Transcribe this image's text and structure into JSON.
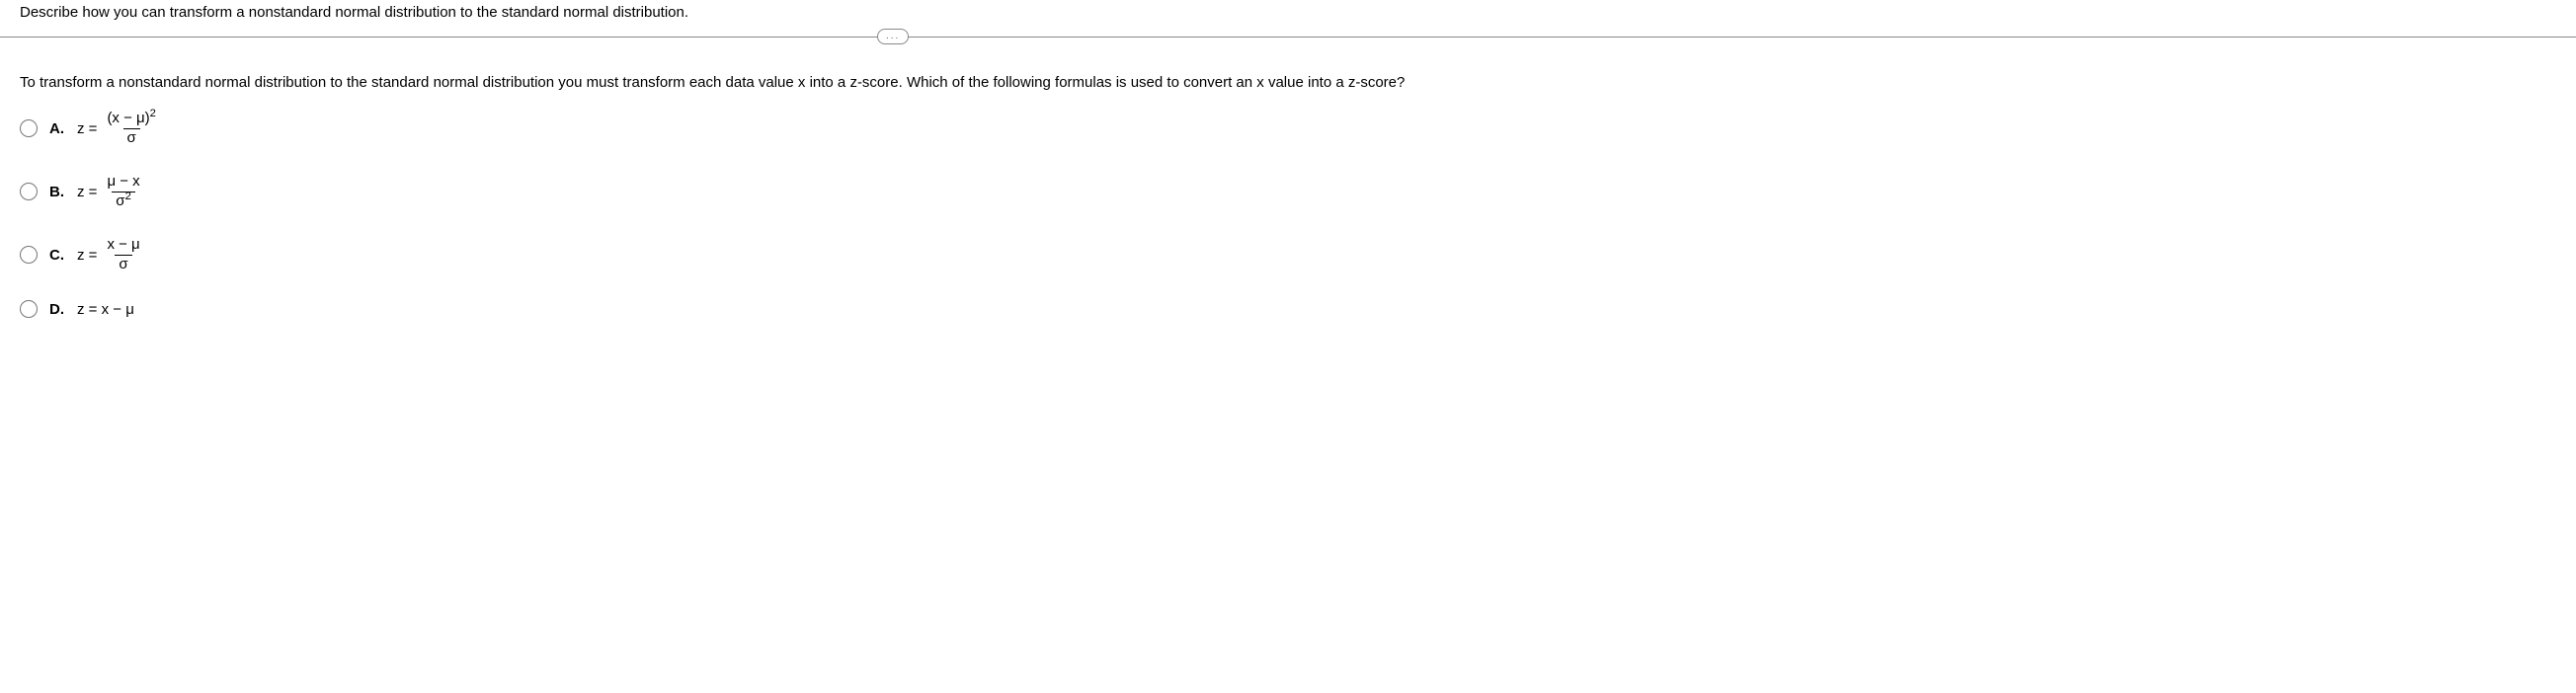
{
  "header": {
    "prompt": "Describe how you can transform a nonstandard normal distribution to the standard normal distribution."
  },
  "more_button": {
    "dots": "..."
  },
  "body": {
    "text": "To transform a nonstandard normal distribution to the standard normal distribution you must transform each data value x into a z-score. Which of the following formulas is used to convert an x value into a z-score?"
  },
  "options": {
    "a": {
      "label": "A.",
      "z_eq": "z =",
      "numerator_base": "(x − μ)",
      "numerator_exp": "2",
      "denominator": "σ"
    },
    "b": {
      "label": "B.",
      "z_eq": "z =",
      "numerator": "μ − x",
      "denominator_base": "σ",
      "denominator_exp": "2"
    },
    "c": {
      "label": "C.",
      "z_eq": "z =",
      "numerator": "x − μ",
      "denominator": "σ"
    },
    "d": {
      "label": "D.",
      "expr": "z = x − μ"
    }
  }
}
